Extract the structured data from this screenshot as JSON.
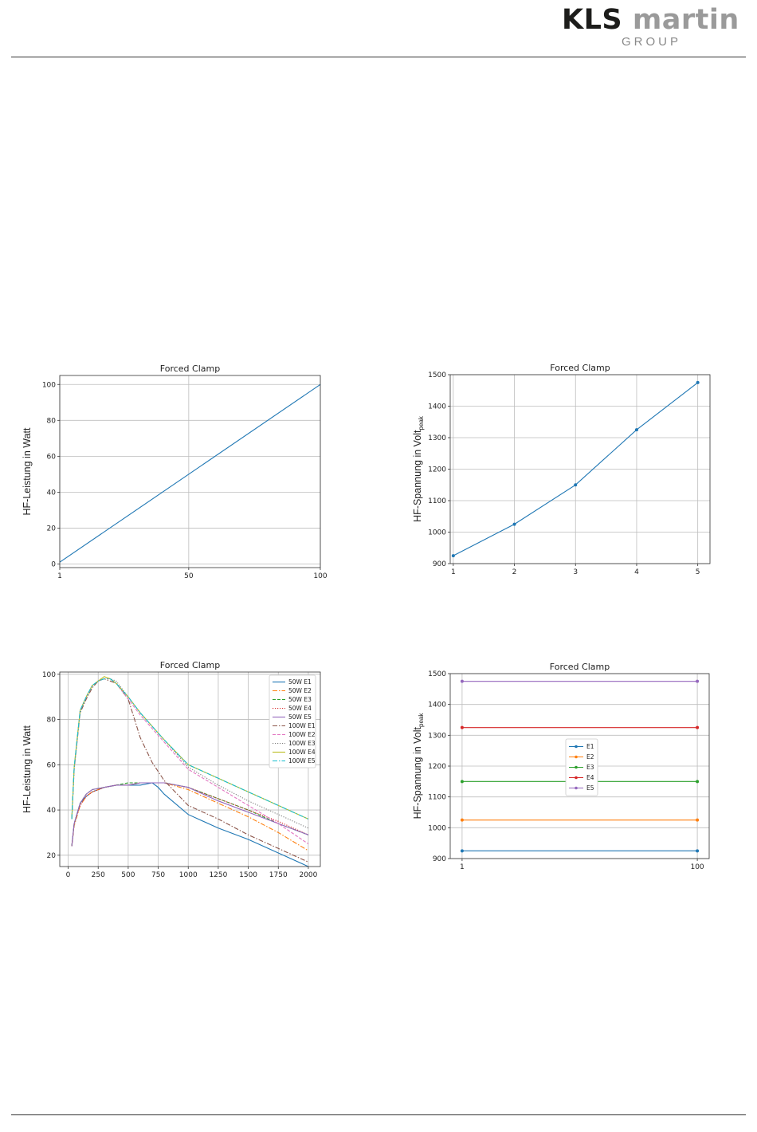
{
  "header": {
    "logo_brand_1": "KLS",
    "logo_brand_2": "martin",
    "logo_group": "GROUP"
  },
  "colors": {
    "c0": "#1f77b4",
    "c1": "#ff7f0e",
    "c2": "#2ca02c",
    "c3": "#d62728",
    "c4": "#9467bd",
    "c5": "#8c564b",
    "c6": "#e377c2",
    "c7": "#7f7f7f",
    "c8": "#bcbd22",
    "c9": "#17becf"
  },
  "chart_data": [
    {
      "type": "line",
      "title": "Forced Clamp",
      "ylabel": "HF-Leistung in Watt",
      "xlim": [
        1,
        100
      ],
      "ylim": [
        -2,
        105
      ],
      "xticks": [
        1,
        50,
        100
      ],
      "yticks": [
        0,
        20,
        40,
        60,
        80,
        100
      ],
      "grid": true,
      "series": [
        {
          "x": [
            1,
            100
          ],
          "y": [
            1,
            100
          ]
        }
      ]
    },
    {
      "type": "line",
      "title": "Forced Clamp",
      "ylabel": "HF-Spannung in Volt",
      "ylabel_sub": "peak",
      "xlim": [
        0.95,
        5.2
      ],
      "ylim": [
        900,
        1500
      ],
      "xticks": [
        1,
        2,
        3,
        4,
        5
      ],
      "yticks": [
        900,
        1000,
        1100,
        1200,
        1300,
        1400,
        1500
      ],
      "grid": true,
      "series": [
        {
          "x": [
            1,
            2,
            3,
            4,
            5
          ],
          "y": [
            925,
            1025,
            1150,
            1325,
            1475
          ],
          "marker": true
        }
      ]
    },
    {
      "type": "line",
      "title": "Forced Clamp",
      "ylabel": "HF-Leistung in Watt",
      "xlim": [
        -70,
        2100
      ],
      "ylim": [
        15,
        101
      ],
      "xticks": [
        0,
        250,
        500,
        750,
        1000,
        1250,
        1500,
        1750,
        2000
      ],
      "yticks": [
        20,
        40,
        60,
        80,
        100
      ],
      "grid": true,
      "legend": "top-right",
      "series": [
        {
          "name": "50W E1",
          "color": "c0",
          "dash": "",
          "x": [
            30,
            50,
            100,
            150,
            200,
            300,
            400,
            500,
            600,
            700,
            750,
            800,
            1000,
            1250,
            1500,
            1750,
            2000
          ],
          "y": [
            24,
            34,
            43,
            46,
            48,
            50,
            51,
            51,
            51,
            52,
            50,
            47,
            38,
            32,
            27,
            21,
            15
          ]
        },
        {
          "name": "50W E2",
          "color": "c1",
          "dash": "6,2,1.5,2",
          "x": [
            30,
            50,
            100,
            150,
            200,
            300,
            400,
            500,
            600,
            700,
            800,
            1000,
            1250,
            1500,
            1750,
            2000
          ],
          "y": [
            24,
            33,
            42,
            46,
            48,
            50,
            51,
            51,
            52,
            52,
            52,
            49,
            43,
            37,
            30,
            22
          ]
        },
        {
          "name": "50W E3",
          "color": "c2",
          "dash": "4,2",
          "x": [
            30,
            50,
            100,
            150,
            200,
            300,
            400,
            500,
            600,
            700,
            800,
            1000,
            1250,
            1500,
            1750,
            2000
          ],
          "y": [
            24,
            34,
            43,
            47,
            49,
            50,
            51,
            52,
            52,
            52,
            52,
            50,
            45,
            40,
            34,
            29
          ]
        },
        {
          "name": "50W E4",
          "color": "c3",
          "dash": "1.2,1.8",
          "x": [
            30,
            50,
            100,
            150,
            200,
            300,
            400,
            500,
            600,
            700,
            800,
            1000,
            1250,
            1500,
            1750,
            2000
          ],
          "y": [
            24,
            34,
            42,
            46,
            48,
            50,
            51,
            51,
            52,
            52,
            52,
            50,
            45,
            40,
            35,
            29
          ]
        },
        {
          "name": "50W E5",
          "color": "c4",
          "dash": "",
          "x": [
            30,
            50,
            100,
            150,
            200,
            300,
            400,
            500,
            600,
            700,
            800,
            1000,
            1250,
            1500,
            1750,
            2000
          ],
          "y": [
            24,
            34,
            43,
            47,
            49,
            50,
            51,
            51,
            52,
            52,
            52,
            50,
            44,
            39,
            34,
            29
          ]
        },
        {
          "name": "100W E1",
          "color": "c5",
          "dash": "6,2,1.5,2",
          "x": [
            30,
            50,
            100,
            150,
            200,
            250,
            300,
            350,
            400,
            500,
            600,
            700,
            800,
            1000,
            1250,
            1500,
            1750,
            2000
          ],
          "y": [
            36,
            58,
            83,
            89,
            94,
            97,
            98,
            97,
            96,
            89,
            72,
            61,
            53,
            42,
            36,
            29,
            23,
            17
          ]
        },
        {
          "name": "100W E2",
          "color": "c6",
          "dash": "4,2",
          "x": [
            30,
            50,
            100,
            150,
            200,
            250,
            300,
            350,
            400,
            500,
            600,
            700,
            800,
            1000,
            1250,
            1500,
            1750,
            2000
          ],
          "y": [
            36,
            58,
            84,
            90,
            95,
            97,
            98,
            98,
            96,
            89,
            82,
            76,
            70,
            58,
            50,
            42,
            34,
            25
          ]
        },
        {
          "name": "100W E3",
          "color": "c7",
          "dash": "1.2,1.8",
          "x": [
            30,
            50,
            100,
            150,
            200,
            250,
            300,
            350,
            400,
            500,
            600,
            700,
            800,
            1000,
            1250,
            1500,
            1750,
            2000
          ],
          "y": [
            36,
            59,
            84,
            90,
            95,
            97,
            98,
            98,
            97,
            90,
            83,
            77,
            71,
            59,
            51,
            44,
            38,
            32
          ]
        },
        {
          "name": "100W E4",
          "color": "c8",
          "dash": "",
          "x": [
            30,
            50,
            100,
            150,
            200,
            250,
            300,
            350,
            400,
            500,
            600,
            700,
            800,
            1000,
            1250,
            1500,
            1750,
            2000
          ],
          "y": [
            36,
            59,
            84,
            90,
            95,
            97,
            99,
            98,
            96,
            90,
            83,
            77,
            71,
            60,
            54,
            48,
            42,
            36
          ]
        },
        {
          "name": "100W E5",
          "color": "c9",
          "dash": "6,2,1.5,2",
          "x": [
            30,
            50,
            100,
            150,
            200,
            250,
            300,
            350,
            400,
            500,
            600,
            700,
            800,
            1000,
            1250,
            1500,
            1750,
            2000
          ],
          "y": [
            36,
            59,
            84,
            90,
            95,
            97,
            98,
            98,
            96,
            90,
            83,
            77,
            71,
            60,
            54,
            48,
            42,
            36
          ]
        }
      ]
    },
    {
      "type": "line",
      "title": "Forced Clamp",
      "ylabel": "HF-Spannung in Volt",
      "ylabel_sub": "peak",
      "xlim": [
        -4,
        105
      ],
      "ylim": [
        900,
        1500
      ],
      "xticks": [
        1,
        100
      ],
      "yticks": [
        900,
        1000,
        1100,
        1200,
        1300,
        1400,
        1500
      ],
      "grid": true,
      "legend": "center",
      "series": [
        {
          "name": "E1",
          "color": "c0",
          "x": [
            1,
            100
          ],
          "y": [
            925,
            925
          ],
          "marker": true
        },
        {
          "name": "E2",
          "color": "c1",
          "x": [
            1,
            100
          ],
          "y": [
            1025,
            1025
          ],
          "marker": true
        },
        {
          "name": "E3",
          "color": "c2",
          "x": [
            1,
            100
          ],
          "y": [
            1150,
            1150
          ],
          "marker": true
        },
        {
          "name": "E4",
          "color": "c3",
          "x": [
            1,
            100
          ],
          "y": [
            1325,
            1325
          ],
          "marker": true
        },
        {
          "name": "E5",
          "color": "c4",
          "x": [
            1,
            100
          ],
          "y": [
            1475,
            1475
          ],
          "marker": true
        }
      ]
    }
  ]
}
